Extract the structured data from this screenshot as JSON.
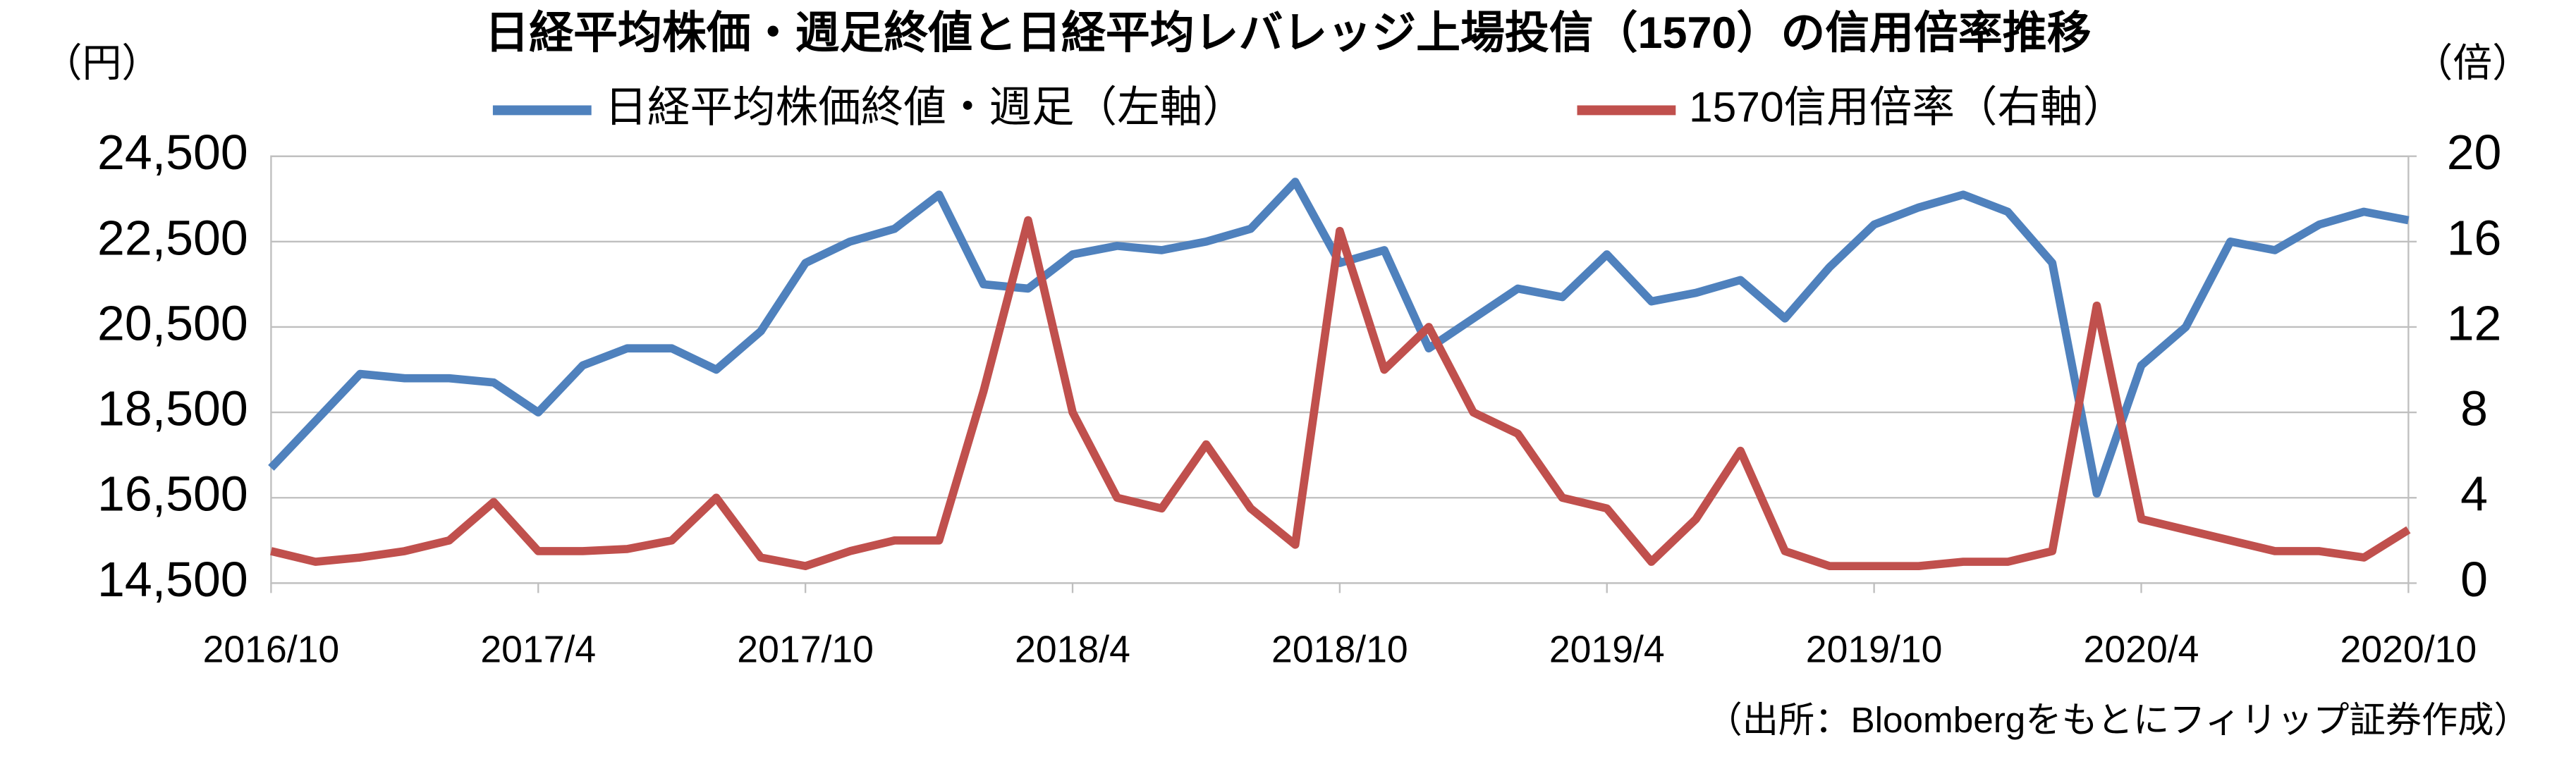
{
  "chart_data": {
    "type": "line",
    "title": "日経平均株価・週足終値と日経平均レバレッジ上場投信（1570）の信用倍率推移",
    "y_label": "（円）",
    "y2_label": "（倍）",
    "note": "（出所：Bloombergをもとにフィリップ証券作成）",
    "x": [
      "2016/10",
      "2016/11",
      "2016/12",
      "2017/1",
      "2017/2",
      "2017/3",
      "2017/4",
      "2017/5",
      "2017/6",
      "2017/7",
      "2017/8",
      "2017/9",
      "2017/10",
      "2017/11",
      "2017/12",
      "2018/1",
      "2018/2",
      "2018/3",
      "2018/4",
      "2018/5",
      "2018/6",
      "2018/7",
      "2018/8",
      "2018/9",
      "2018/10",
      "2018/11",
      "2018/12",
      "2019/1",
      "2019/2",
      "2019/3",
      "2019/4",
      "2019/5",
      "2019/6",
      "2019/7",
      "2019/8",
      "2019/9",
      "2019/10",
      "2019/11",
      "2019/12",
      "2020/1",
      "2020/2",
      "2020/3",
      "2020/4",
      "2020/5",
      "2020/6",
      "2020/7",
      "2020/8",
      "2020/9",
      "2020/10"
    ],
    "xticks": [
      "2016/10",
      "2017/4",
      "2017/10",
      "2018/4",
      "2018/10",
      "2019/4",
      "2019/10",
      "2020/4",
      "2020/10"
    ],
    "series": [
      {
        "name": "日経平均株価終値・週足（左軸）",
        "color": "#4f81bd",
        "values": [
          17200,
          18300,
          19400,
          19300,
          19300,
          19200,
          18500,
          19600,
          20000,
          20000,
          19500,
          20400,
          22000,
          22500,
          22800,
          23600,
          21500,
          21400,
          22200,
          22400,
          22300,
          22500,
          22800,
          23900,
          22000,
          22300,
          20000,
          20700,
          21400,
          21200,
          22200,
          21100,
          21300,
          21600,
          20700,
          21900,
          22900,
          23300,
          23600,
          23200,
          22000,
          16600,
          19600,
          20500,
          22500,
          22300,
          22900,
          23200,
          23000
        ]
      },
      {
        "name": "1570信用倍率（右軸）",
        "color": "#c0504d",
        "axis": "y2",
        "values": [
          1.5,
          1.0,
          1.2,
          1.5,
          2.0,
          3.8,
          1.5,
          1.5,
          1.6,
          2.0,
          4.0,
          1.2,
          0.8,
          1.5,
          2.0,
          2.0,
          9.0,
          17.0,
          8.0,
          4.0,
          3.5,
          6.5,
          3.5,
          1.8,
          16.5,
          10.0,
          12.0,
          8.0,
          7.0,
          4.0,
          3.5,
          1.0,
          3.0,
          6.2,
          1.5,
          0.8,
          0.8,
          0.8,
          1.0,
          1.0,
          1.5,
          13.0,
          3.0,
          2.5,
          2.0,
          1.5,
          1.5,
          1.2,
          2.5
        ]
      }
    ],
    "ylim": [
      14500,
      24500
    ],
    "yticks": [
      {
        "value": 14500,
        "label": "14,500"
      },
      {
        "value": 16500,
        "label": "16,500"
      },
      {
        "value": 18500,
        "label": "18,500"
      },
      {
        "value": 20500,
        "label": "20,500"
      },
      {
        "value": 22500,
        "label": "22,500"
      },
      {
        "value": 24500,
        "label": "24,500"
      }
    ],
    "y2lim": [
      0,
      20
    ],
    "y2ticks": [
      0,
      4,
      8,
      12,
      16,
      20
    ],
    "grid": true
  }
}
